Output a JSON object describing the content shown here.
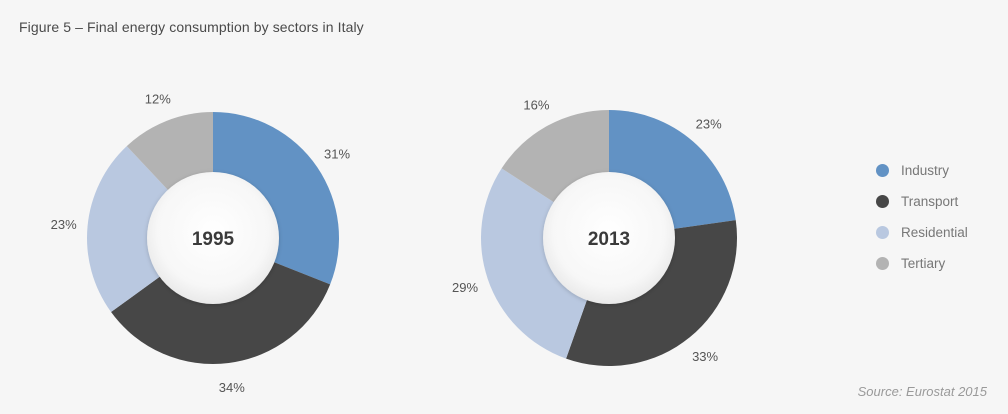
{
  "title": "Figure 5 – Final energy consumption by sectors in Italy",
  "source": "Source: Eurostat 2015",
  "colors": {
    "Industry": "#6292c4",
    "Transport": "#474747",
    "Residential": "#b9c8e0",
    "Tertiary": "#b3b3b3"
  },
  "chart_data": [
    {
      "type": "pie",
      "subtype": "donut",
      "center_label": "1995",
      "categories": [
        "Industry",
        "Transport",
        "Residential",
        "Tertiary"
      ],
      "values": [
        31,
        34,
        23,
        12
      ],
      "labels": [
        "31%",
        "34%",
        "23%",
        "12%"
      ]
    },
    {
      "type": "pie",
      "subtype": "donut",
      "center_label": "2013",
      "categories": [
        "Industry",
        "Transport",
        "Residential",
        "Tertiary"
      ],
      "values": [
        23,
        33,
        29,
        16
      ],
      "labels": [
        "23%",
        "33%",
        "29%",
        "16%"
      ]
    }
  ],
  "legend": [
    {
      "label": "Industry",
      "color": "#6292c4"
    },
    {
      "label": "Transport",
      "color": "#474747"
    },
    {
      "label": "Residential",
      "color": "#b9c8e0"
    },
    {
      "label": "Tertiary",
      "color": "#b3b3b3"
    }
  ]
}
